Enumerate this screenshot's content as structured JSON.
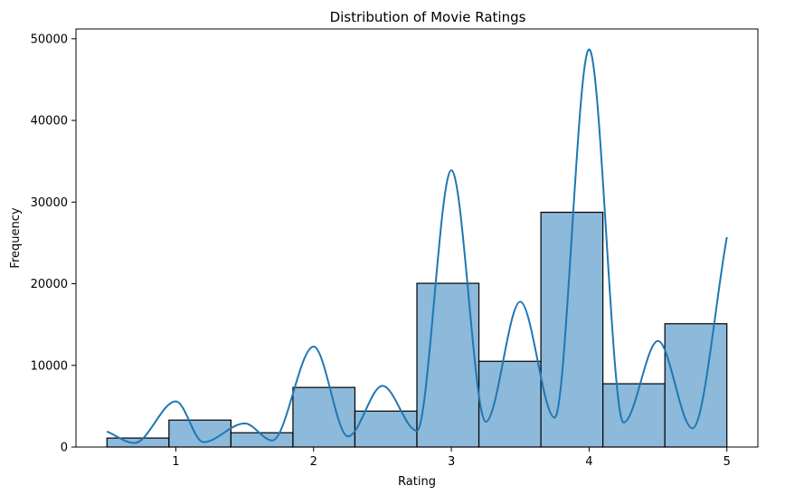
{
  "chart_data": {
    "type": "bar",
    "title": "Distribution of Movie Ratings",
    "xlabel": "Rating",
    "ylabel": "Frequency",
    "xlim": [
      0.275,
      5.225
    ],
    "ylim": [
      0,
      51200
    ],
    "xticks": [
      1,
      2,
      3,
      4,
      5
    ],
    "yticks": [
      0,
      10000,
      20000,
      30000,
      40000,
      50000
    ],
    "grid": false,
    "bar_color": "#8DB9DA",
    "bar_edge_color": "#000000",
    "kde_color": "#1F77B4",
    "bins": [
      {
        "x0": 0.5,
        "x1": 0.95,
        "value": 1100
      },
      {
        "x0": 0.95,
        "x1": 1.4,
        "value": 3300
      },
      {
        "x0": 1.4,
        "x1": 1.85,
        "value": 1750
      },
      {
        "x0": 1.85,
        "x1": 2.3,
        "value": 7300
      },
      {
        "x0": 2.3,
        "x1": 2.75,
        "value": 4400
      },
      {
        "x0": 2.75,
        "x1": 3.2,
        "value": 20050
      },
      {
        "x0": 3.2,
        "x1": 3.65,
        "value": 10500
      },
      {
        "x0": 3.65,
        "x1": 4.1,
        "value": 28750
      },
      {
        "x0": 4.1,
        "x1": 4.55,
        "value": 7750
      },
      {
        "x0": 4.55,
        "x1": 5.0,
        "value": 15100
      }
    ],
    "kde": {
      "x": [
        0.5,
        0.7,
        1.0,
        1.2,
        1.5,
        1.7,
        2.0,
        2.25,
        2.5,
        2.75,
        3.0,
        3.25,
        3.5,
        3.75,
        4.0,
        4.25,
        4.5,
        4.75,
        5.0
      ],
      "y": [
        1900,
        500,
        5600,
        600,
        2900,
        800,
        12300,
        1300,
        7500,
        2000,
        33900,
        3100,
        17800,
        3600,
        48700,
        3000,
        13000,
        2300,
        25700
      ]
    }
  }
}
